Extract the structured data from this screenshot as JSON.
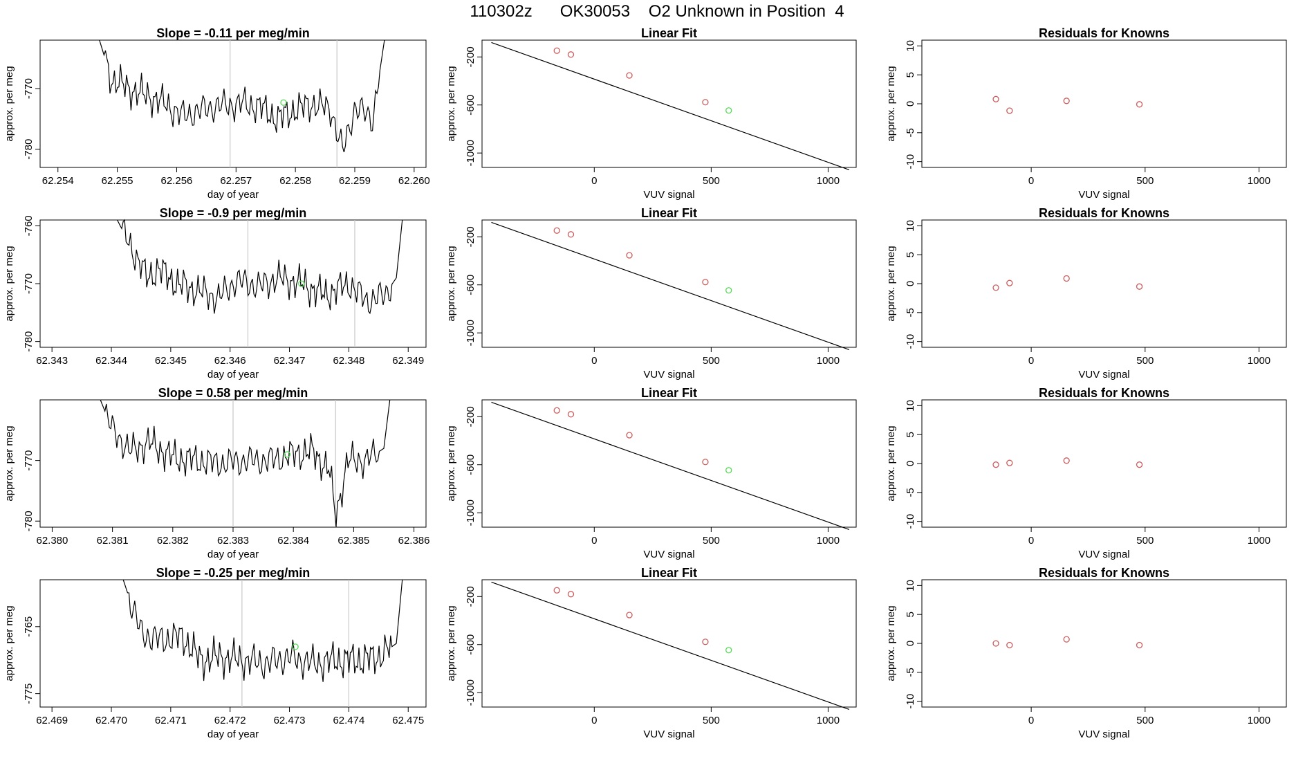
{
  "page": {
    "title": "110302z      OK30053    O2 Unknown in Position  4"
  },
  "chart_data": {
    "type": "multi-panel",
    "rows": [
      {
        "timeseries": {
          "type": "line",
          "title": "Slope =  -0.11  per meg/min",
          "xlabel": "day of year",
          "ylabel": "approx. per meg",
          "xlim": [
            62.2537,
            62.2602
          ],
          "ylim": [
            -783,
            -762
          ],
          "xticks": [
            "62.254",
            "62.255",
            "62.256",
            "62.257",
            "62.258",
            "62.259",
            "62.260"
          ],
          "yticks": [
            "-770",
            "-780"
          ],
          "vlines": [
            62.2569,
            62.2587
          ],
          "point": [
            62.2578,
            -772.3
          ],
          "start": 62.2547,
          "end": 62.2595,
          "end_x": 62.2595,
          "base": -771.5,
          "amp": 3.2,
          "series": [
            {
              "x": 62.2547,
              "y": -762
            },
            {
              "x": 62.2549,
              "y": -768.5
            },
            {
              "x": 62.2553,
              "y": -770.5
            },
            {
              "x": 62.2556,
              "y": -771.5
            },
            {
              "x": 62.2558,
              "y": -772.5
            },
            {
              "x": 62.2561,
              "y": -774.5
            },
            {
              "x": 62.2566,
              "y": -773.0
            },
            {
              "x": 62.2571,
              "y": -772.5
            },
            {
              "x": 62.2574,
              "y": -773.0
            },
            {
              "x": 62.2577,
              "y": -775.0
            },
            {
              "x": 62.258,
              "y": -773.5
            },
            {
              "x": 62.2583,
              "y": -772.5
            },
            {
              "x": 62.2586,
              "y": -773.5
            },
            {
              "x": 62.2588,
              "y": -780.5
            },
            {
              "x": 62.259,
              "y": -773.0
            },
            {
              "x": 62.2593,
              "y": -775.0
            },
            {
              "x": 62.2595,
              "y": -762
            }
          ]
        },
        "fit": {
          "type": "scatter",
          "title": "Linear Fit",
          "xlabel": "VUV signal",
          "ylabel": "approx. per meg",
          "xlim": [
            -480,
            1120
          ],
          "ylim": [
            -1120,
            -60
          ],
          "xticks": [
            "0",
            "500",
            "1000"
          ],
          "yticks": [
            "-200",
            "-600",
            "-1000"
          ],
          "line": [
            [
              -440,
              -80
            ],
            [
              1090,
              -1140
            ]
          ],
          "knowns": [
            [
              -160,
              -148
            ],
            [
              -100,
              -180
            ],
            [
              150,
              -354
            ],
            [
              475,
              -577
            ]
          ],
          "unknown": [
            575,
            -646
          ]
        },
        "residuals": {
          "type": "scatter",
          "title": "Residuals for Knowns",
          "xlabel": "VUV signal",
          "ylabel": "approx. per meg",
          "xlim": [
            -480,
            1120
          ],
          "ylim": [
            -11,
            11
          ],
          "xticks": [
            "0",
            "500",
            "1000"
          ],
          "yticks": [
            "10",
            "5",
            "0",
            "-5",
            "-10"
          ],
          "points": [
            [
              -155,
              0.8
            ],
            [
              -95,
              -1.2
            ],
            [
              155,
              0.5
            ],
            [
              475,
              -0.1
            ]
          ]
        }
      },
      {
        "timeseries": {
          "type": "line",
          "title": "Slope =  -0.9  per meg/min",
          "xlabel": "day of year",
          "ylabel": "approx. per meg",
          "xlim": [
            62.3428,
            62.3493
          ],
          "ylim": [
            -781,
            -759
          ],
          "xticks": [
            "62.343",
            "62.344",
            "62.345",
            "62.346",
            "62.347",
            "62.348",
            "62.349"
          ],
          "yticks": [
            "-760",
            "-770",
            "-780"
          ],
          "vlines": [
            62.3463,
            62.3481
          ],
          "point": [
            62.3472,
            -770.0
          ],
          "start": 62.3441,
          "end": 62.3488,
          "end_x": 62.3489,
          "base": -769.5,
          "amp": 3.4,
          "series": [
            {
              "x": 62.3441,
              "y": -759
            },
            {
              "x": 62.3444,
              "y": -765.0
            },
            {
              "x": 62.3446,
              "y": -769.0
            },
            {
              "x": 62.3448,
              "y": -767.5
            },
            {
              "x": 62.3451,
              "y": -770.0
            },
            {
              "x": 62.3454,
              "y": -771.0
            },
            {
              "x": 62.3458,
              "y": -772.5
            },
            {
              "x": 62.3461,
              "y": -769.5
            },
            {
              "x": 62.3465,
              "y": -770.5
            },
            {
              "x": 62.3468,
              "y": -769.0
            },
            {
              "x": 62.3472,
              "y": -770.0
            },
            {
              "x": 62.3476,
              "y": -772.0
            },
            {
              "x": 62.348,
              "y": -770.0
            },
            {
              "x": 62.3483,
              "y": -773.0
            },
            {
              "x": 62.3486,
              "y": -772.0
            },
            {
              "x": 62.3488,
              "y": -769.0
            },
            {
              "x": 62.3489,
              "y": -759
            }
          ]
        },
        "fit": {
          "type": "scatter",
          "title": "Linear Fit",
          "xlabel": "VUV signal",
          "ylabel": "approx. per meg",
          "xlim": [
            -480,
            1120
          ],
          "ylim": [
            -1120,
            -60
          ],
          "xticks": [
            "0",
            "500",
            "1000"
          ],
          "yticks": [
            "-200",
            "-600",
            "-1000"
          ],
          "line": [
            [
              -440,
              -80
            ],
            [
              1090,
              -1140
            ]
          ],
          "knowns": [
            [
              -160,
              -148
            ],
            [
              -100,
              -180
            ],
            [
              150,
              -354
            ],
            [
              475,
              -577
            ]
          ],
          "unknown": [
            575,
            -646
          ]
        },
        "residuals": {
          "type": "scatter",
          "title": "Residuals for Knowns",
          "xlabel": "VUV signal",
          "ylabel": "approx. per meg",
          "xlim": [
            -480,
            1120
          ],
          "ylim": [
            -11,
            11
          ],
          "xticks": [
            "0",
            "500",
            "1000"
          ],
          "yticks": [
            "10",
            "5",
            "0",
            "-5",
            "-10"
          ],
          "points": [
            [
              -155,
              -0.7
            ],
            [
              -95,
              0.1
            ],
            [
              155,
              0.9
            ],
            [
              475,
              -0.5
            ]
          ]
        }
      },
      {
        "timeseries": {
          "type": "line",
          "title": "Slope =  0.58  per meg/min",
          "xlabel": "day of year",
          "ylabel": "approx. per meg",
          "xlim": [
            62.3798,
            62.3862
          ],
          "ylim": [
            -781,
            -760
          ],
          "xticks": [
            "62.380",
            "62.381",
            "62.382",
            "62.383",
            "62.384",
            "62.385",
            "62.386"
          ],
          "yticks": [
            "-770",
            "-780"
          ],
          "vlines": [
            62.383,
            62.3847
          ],
          "point": [
            62.3839,
            -769.0
          ],
          "start": 62.3808,
          "end": 62.3855,
          "end_x": 62.3856,
          "base": -769.0,
          "amp": 3.2,
          "series": [
            {
              "x": 62.3808,
              "y": -760
            },
            {
              "x": 62.381,
              "y": -765.0
            },
            {
              "x": 62.3813,
              "y": -768.5
            },
            {
              "x": 62.3816,
              "y": -767.0
            },
            {
              "x": 62.382,
              "y": -769.5
            },
            {
              "x": 62.3824,
              "y": -770.0
            },
            {
              "x": 62.3828,
              "y": -770.5
            },
            {
              "x": 62.3832,
              "y": -770.0
            },
            {
              "x": 62.3836,
              "y": -770.0
            },
            {
              "x": 62.384,
              "y": -769.0
            },
            {
              "x": 62.3843,
              "y": -768.5
            },
            {
              "x": 62.3846,
              "y": -771.5
            },
            {
              "x": 62.3847,
              "y": -779.5
            },
            {
              "x": 62.3849,
              "y": -770.0
            },
            {
              "x": 62.3852,
              "y": -770.0
            },
            {
              "x": 62.3855,
              "y": -768.0
            },
            {
              "x": 62.3856,
              "y": -760
            }
          ]
        },
        "fit": {
          "type": "scatter",
          "title": "Linear Fit",
          "xlabel": "VUV signal",
          "ylabel": "approx. per meg",
          "xlim": [
            -480,
            1120
          ],
          "ylim": [
            -1120,
            -60
          ],
          "xticks": [
            "0",
            "500",
            "1000"
          ],
          "yticks": [
            "-200",
            "-600",
            "-1000"
          ],
          "line": [
            [
              -440,
              -80
            ],
            [
              1090,
              -1140
            ]
          ],
          "knowns": [
            [
              -160,
              -148
            ],
            [
              -100,
              -180
            ],
            [
              150,
              -354
            ],
            [
              475,
              -577
            ]
          ],
          "unknown": [
            575,
            -646
          ]
        },
        "residuals": {
          "type": "scatter",
          "title": "Residuals for Knowns",
          "xlabel": "VUV signal",
          "ylabel": "approx. per meg",
          "xlim": [
            -480,
            1120
          ],
          "ylim": [
            -11,
            11
          ],
          "xticks": [
            "0",
            "500",
            "1000"
          ],
          "yticks": [
            "10",
            "5",
            "0",
            "-5",
            "-10"
          ],
          "points": [
            [
              -155,
              -0.2
            ],
            [
              -95,
              0.1
            ],
            [
              155,
              0.5
            ],
            [
              475,
              -0.2
            ]
          ]
        }
      },
      {
        "timeseries": {
          "type": "line",
          "title": "Slope =  -0.25  per meg/min",
          "xlabel": "day of year",
          "ylabel": "approx. per meg",
          "xlim": [
            62.4688,
            62.4753
          ],
          "ylim": [
            -777,
            -758
          ],
          "xticks": [
            "62.469",
            "62.470",
            "62.471",
            "62.472",
            "62.473",
            "62.474",
            "62.475"
          ],
          "yticks": [
            "-765",
            "-775"
          ],
          "vlines": [
            62.4722,
            62.474
          ],
          "point": [
            62.4731,
            -768.0
          ],
          "start": 62.4702,
          "end": 62.4748,
          "end_x": 62.4749,
          "base": -769.5,
          "amp": 3.1,
          "series": [
            {
              "x": 62.4702,
              "y": -758
            },
            {
              "x": 62.4705,
              "y": -766.0
            },
            {
              "x": 62.4708,
              "y": -767.0
            },
            {
              "x": 62.4712,
              "y": -766.5
            },
            {
              "x": 62.4715,
              "y": -770.0
            },
            {
              "x": 62.4718,
              "y": -769.5
            },
            {
              "x": 62.4722,
              "y": -770.0
            },
            {
              "x": 62.4726,
              "y": -770.5
            },
            {
              "x": 62.473,
              "y": -769.5
            },
            {
              "x": 62.4734,
              "y": -770.5
            },
            {
              "x": 62.4738,
              "y": -770.0
            },
            {
              "x": 62.4742,
              "y": -770.0
            },
            {
              "x": 62.4745,
              "y": -769.5
            },
            {
              "x": 62.4748,
              "y": -767.5
            },
            {
              "x": 62.4749,
              "y": -758
            }
          ]
        },
        "fit": {
          "type": "scatter",
          "title": "Linear Fit",
          "xlabel": "VUV signal",
          "ylabel": "approx. per meg",
          "xlim": [
            -480,
            1120
          ],
          "ylim": [
            -1120,
            -60
          ],
          "xticks": [
            "0",
            "500",
            "1000"
          ],
          "yticks": [
            "-200",
            "-600",
            "-1000"
          ],
          "line": [
            [
              -440,
              -80
            ],
            [
              1090,
              -1140
            ]
          ],
          "knowns": [
            [
              -160,
              -148
            ],
            [
              -100,
              -180
            ],
            [
              150,
              -354
            ],
            [
              475,
              -577
            ]
          ],
          "unknown": [
            575,
            -646
          ]
        },
        "residuals": {
          "type": "scatter",
          "title": "Residuals for Knowns",
          "xlabel": "VUV signal",
          "ylabel": "approx. per meg",
          "xlim": [
            -480,
            1120
          ],
          "ylim": [
            -11,
            11
          ],
          "xticks": [
            "0",
            "500",
            "1000"
          ],
          "yticks": [
            "10",
            "5",
            "0",
            "-5",
            "-10"
          ],
          "points": [
            [
              -155,
              0.0
            ],
            [
              -95,
              -0.3
            ],
            [
              155,
              0.7
            ],
            [
              475,
              -0.3
            ]
          ]
        }
      }
    ]
  },
  "colors": {
    "line": "#000000",
    "vline": "#c8c8c8",
    "known": "#cd5c5c",
    "unknown": "#55dd55"
  }
}
